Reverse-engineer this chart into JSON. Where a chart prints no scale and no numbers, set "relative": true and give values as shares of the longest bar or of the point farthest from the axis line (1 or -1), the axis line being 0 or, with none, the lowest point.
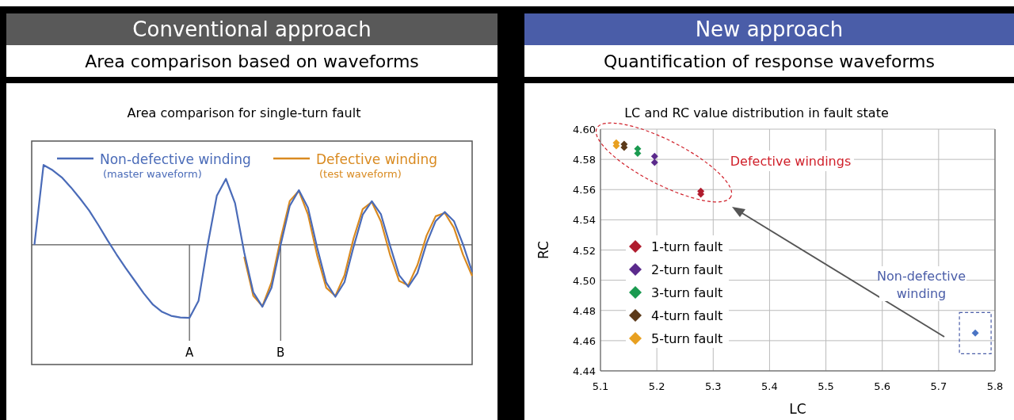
{
  "chart_data": [
    {
      "type": "line",
      "title": "Area comparison for single-turn fault",
      "annotations": [
        "Conventional approach",
        "Area comparison based on waveforms"
      ],
      "relative": true,
      "legend": "top",
      "line_style": "solid",
      "categories": [
        null,
        null,
        null,
        null,
        null,
        null,
        null,
        null,
        null,
        null,
        null,
        null,
        null,
        null,
        null,
        null,
        null,
        "A",
        null,
        null,
        null,
        null,
        null,
        null,
        null,
        null,
        null,
        "B",
        null,
        null,
        null,
        null,
        null,
        null,
        null,
        null,
        null,
        null,
        null,
        null,
        null,
        null,
        null,
        null,
        null,
        null,
        null,
        null,
        null
      ],
      "series": [
        {
          "name": "Defective winding (test waveform)",
          "color": "#d98a20",
          "values": [
            null,
            null,
            null,
            null,
            null,
            null,
            null,
            null,
            null,
            null,
            null,
            null,
            null,
            null,
            null,
            null,
            null,
            null,
            null,
            null,
            null,
            null,
            null,
            -0.149,
            -0.639,
            -0.768,
            -0.47,
            0.075,
            0.549,
            0.676,
            0.381,
            -0.131,
            -0.538,
            -0.641,
            -0.383,
            0.081,
            0.447,
            0.536,
            0.293,
            -0.125,
            -0.453,
            -0.506,
            -0.254,
            0.115,
            0.358,
            0.399,
            0.214,
            -0.124,
            -0.39
          ]
        },
        {
          "name": "Non-defective winding (master waveform)",
          "color": "#4a6bb8",
          "values": [
            0,
            1,
            0.935,
            0.845,
            0.72,
            0.58,
            0.43,
            0.25,
            0.06,
            -0.12,
            -0.29,
            -0.45,
            -0.61,
            -0.75,
            -0.84,
            -0.89,
            -0.91,
            -0.916,
            -0.7,
            0,
            0.614,
            0.826,
            0.522,
            -0.092,
            -0.595,
            -0.776,
            -0.536,
            0,
            0.488,
            0.685,
            0.464,
            -0.034,
            -0.474,
            -0.651,
            -0.467,
            -0.024,
            0.377,
            0.546,
            0.382,
            -0.012,
            -0.382,
            -0.525,
            -0.355,
            0.018,
            0.298,
            0.412,
            0.298,
            0.006,
            -0.34
          ]
        }
      ]
    },
    {
      "type": "scatter",
      "title": "LC and RC value distribution in fault state",
      "annotations": [
        "New approach",
        "Quantification of response waveforms",
        "Defective windings"
      ],
      "xlabel": "LC",
      "ylabel": "RC",
      "xlim": [
        5.1,
        5.8
      ],
      "xticks": [
        5.1,
        5.2,
        5.3,
        5.4,
        5.5,
        5.6,
        5.7,
        5.8
      ],
      "ylim": [
        4.44,
        4.6
      ],
      "yticks": [
        {
          "value": 4.44,
          "label": "4.44"
        },
        {
          "value": 4.46,
          "label": "4.46"
        },
        {
          "value": 4.48,
          "label": "4.48"
        },
        {
          "value": 4.5,
          "label": "4.50"
        },
        {
          "value": 4.52,
          "label": "4.52"
        },
        {
          "value": 4.54,
          "label": "4.54"
        },
        {
          "value": 4.56,
          "label": "4.56"
        },
        {
          "value": 4.58,
          "label": "4.58"
        },
        {
          "value": 4.6,
          "label": "4.60"
        }
      ],
      "grid": true,
      "legend": "bottom left",
      "marker": "diamond",
      "series": [
        {
          "name": "1-turn fault",
          "color": "#b01c2e",
          "x": [
            5.278,
            5.278
          ],
          "values": [
            4.559,
            4.557
          ]
        },
        {
          "name": "2-turn fault",
          "color": "#5b2a8c",
          "x": [
            5.196,
            5.196
          ],
          "values": [
            4.582,
            4.578
          ]
        },
        {
          "name": "3-turn fault",
          "color": "#1a9a50",
          "x": [
            5.166,
            5.166
          ],
          "values": [
            4.587,
            4.584
          ]
        },
        {
          "name": "4-turn fault",
          "color": "#5c3a1a",
          "x": [
            5.142,
            5.142
          ],
          "values": [
            4.59,
            4.588
          ]
        },
        {
          "name": "5-turn fault",
          "color": "#e8a020",
          "x": [
            5.128,
            5.128
          ],
          "values": [
            4.591,
            4.589
          ]
        },
        {
          "name": "Non-defective winding",
          "color": "#4a74c4",
          "x": [
            5.765
          ],
          "values": [
            4.465
          ]
        }
      ]
    }
  ]
}
